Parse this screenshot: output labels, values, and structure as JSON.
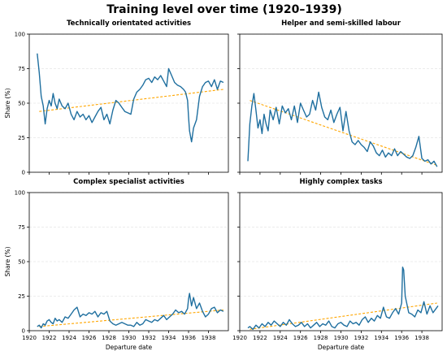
{
  "title": "Training level over time (1920–1939)",
  "x_axis": {
    "label": "Departure date",
    "min": 1920,
    "max": 1940,
    "ticks": [
      1920,
      1922,
      1924,
      1926,
      1928,
      1930,
      1932,
      1934,
      1936,
      1938
    ]
  },
  "y_axis": {
    "label": "Share (%)",
    "min": 0,
    "max": 100,
    "ticks": [
      0,
      25,
      50,
      75,
      100
    ]
  },
  "colors": {
    "series": "#1f6f9f",
    "trend": "#ffa600",
    "grid": "#e6e6e6",
    "spine": "#000000"
  },
  "chart_data": [
    {
      "type": "line",
      "title": "Technically orientated activities",
      "xlim": [
        1920,
        1940
      ],
      "ylim": [
        0,
        100
      ],
      "grid": "horizontal dashed",
      "series": [
        {
          "x": [
            1920.8,
            1921.0,
            1921.2,
            1921.4,
            1921.6,
            1921.8,
            1922.0,
            1922.2,
            1922.4,
            1922.6,
            1922.8,
            1923.0,
            1923.3,
            1923.6,
            1923.9,
            1924.2,
            1924.5,
            1924.8,
            1925.1,
            1925.4,
            1925.7,
            1926.0,
            1926.3,
            1926.6,
            1926.9,
            1927.2,
            1927.5,
            1927.8,
            1928.1,
            1928.4,
            1928.7,
            1929.0,
            1929.3,
            1929.6,
            1929.9,
            1930.2,
            1930.5,
            1930.8,
            1931.1,
            1931.4,
            1931.7,
            1932.0,
            1932.3,
            1932.6,
            1932.9,
            1933.2,
            1933.5,
            1933.8,
            1934.0,
            1934.3,
            1934.6,
            1934.9,
            1935.2,
            1935.5,
            1935.7,
            1935.9,
            1936.0,
            1936.1,
            1936.3,
            1936.5,
            1936.8,
            1937.1,
            1937.4,
            1937.7,
            1938.0,
            1938.3,
            1938.6,
            1938.9,
            1939.2,
            1939.5
          ],
          "y": [
            86,
            72,
            55,
            48,
            35,
            46,
            52,
            48,
            57,
            50,
            46,
            53,
            48,
            46,
            50,
            42,
            38,
            44,
            40,
            42,
            38,
            41,
            36,
            40,
            44,
            47,
            38,
            42,
            35,
            45,
            52,
            50,
            47,
            44,
            43,
            42,
            53,
            58,
            60,
            63,
            67,
            68,
            65,
            69,
            67,
            70,
            66,
            62,
            75,
            70,
            65,
            63,
            62,
            60,
            58,
            52,
            40,
            30,
            22,
            32,
            38,
            55,
            62,
            65,
            66,
            62,
            67,
            60,
            66,
            65
          ]
        }
      ],
      "trend": {
        "x": [
          1921,
          1939.5
        ],
        "y": [
          44,
          60
        ]
      }
    },
    {
      "type": "line",
      "title": "Helper and semi-skilled labour",
      "xlim": [
        1920,
        1940
      ],
      "ylim": [
        0,
        100
      ],
      "grid": "horizontal dashed",
      "series": [
        {
          "x": [
            1920.8,
            1921.0,
            1921.2,
            1921.4,
            1921.6,
            1921.8,
            1922.0,
            1922.2,
            1922.4,
            1922.6,
            1922.8,
            1923.0,
            1923.3,
            1923.6,
            1923.9,
            1924.2,
            1924.5,
            1924.8,
            1925.1,
            1925.4,
            1925.7,
            1926.0,
            1926.3,
            1926.6,
            1926.9,
            1927.2,
            1927.5,
            1927.8,
            1928.1,
            1928.4,
            1928.7,
            1929.0,
            1929.3,
            1929.6,
            1929.9,
            1930.2,
            1930.5,
            1930.8,
            1931.1,
            1931.4,
            1931.7,
            1932.0,
            1932.3,
            1932.6,
            1932.9,
            1933.2,
            1933.5,
            1933.8,
            1934.1,
            1934.4,
            1934.7,
            1935.0,
            1935.3,
            1935.6,
            1935.9,
            1936.2,
            1936.5,
            1936.8,
            1937.1,
            1937.4,
            1937.7,
            1938.0,
            1938.3,
            1938.6,
            1938.9,
            1939.2,
            1939.5
          ],
          "y": [
            8,
            35,
            48,
            57,
            45,
            32,
            38,
            28,
            42,
            35,
            30,
            45,
            38,
            47,
            35,
            48,
            43,
            46,
            38,
            48,
            36,
            50,
            45,
            40,
            42,
            52,
            45,
            58,
            47,
            40,
            38,
            45,
            36,
            42,
            47,
            30,
            44,
            30,
            22,
            20,
            23,
            20,
            18,
            15,
            22,
            19,
            14,
            12,
            16,
            11,
            14,
            12,
            17,
            12,
            15,
            13,
            11,
            10,
            12,
            18,
            26,
            10,
            8,
            9,
            6,
            8,
            4
          ]
        }
      ],
      "trend": {
        "x": [
          1921,
          1939.5
        ],
        "y": [
          52,
          5
        ]
      }
    },
    {
      "type": "line",
      "title": "Complex specialist activities",
      "xlim": [
        1920,
        1940
      ],
      "ylim": [
        0,
        100
      ],
      "grid": "horizontal dashed",
      "series": [
        {
          "x": [
            1920.8,
            1921.0,
            1921.2,
            1921.4,
            1921.6,
            1921.8,
            1922.0,
            1922.2,
            1922.4,
            1922.6,
            1922.8,
            1923.0,
            1923.3,
            1923.6,
            1923.9,
            1924.2,
            1924.5,
            1924.8,
            1925.1,
            1925.4,
            1925.7,
            1926.0,
            1926.3,
            1926.6,
            1926.9,
            1927.2,
            1927.5,
            1927.8,
            1928.1,
            1928.4,
            1928.7,
            1929.0,
            1929.3,
            1929.6,
            1929.9,
            1930.2,
            1930.5,
            1930.8,
            1931.1,
            1931.4,
            1931.7,
            1932.0,
            1932.3,
            1932.6,
            1932.9,
            1933.2,
            1933.5,
            1933.8,
            1934.1,
            1934.4,
            1934.7,
            1935.0,
            1935.3,
            1935.6,
            1935.9,
            1936.0,
            1936.1,
            1936.3,
            1936.5,
            1936.8,
            1937.1,
            1937.4,
            1937.7,
            1938.0,
            1938.3,
            1938.6,
            1938.9,
            1939.2,
            1939.5
          ],
          "y": [
            3,
            4,
            2,
            5,
            4,
            7,
            8,
            6,
            5,
            9,
            7,
            8,
            6,
            10,
            9,
            12,
            15,
            17,
            10,
            12,
            11,
            13,
            12,
            14,
            10,
            13,
            12,
            14,
            7,
            5,
            4,
            5,
            6,
            5,
            4,
            4,
            3,
            6,
            4,
            5,
            8,
            7,
            6,
            8,
            7,
            9,
            11,
            8,
            10,
            12,
            15,
            13,
            14,
            12,
            16,
            23,
            27,
            18,
            24,
            16,
            20,
            14,
            10,
            12,
            16,
            17,
            13,
            15,
            14
          ]
        }
      ],
      "trend": {
        "x": [
          1921,
          1939.5
        ],
        "y": [
          3,
          15
        ]
      }
    },
    {
      "type": "line",
      "title": "Highly complex tasks",
      "xlim": [
        1920,
        1940
      ],
      "ylim": [
        0,
        100
      ],
      "grid": "horizontal dashed",
      "series": [
        {
          "x": [
            1920.8,
            1921.0,
            1921.3,
            1921.6,
            1921.9,
            1922.2,
            1922.5,
            1922.8,
            1923.1,
            1923.4,
            1923.7,
            1924.0,
            1924.3,
            1924.6,
            1924.9,
            1925.2,
            1925.5,
            1925.8,
            1926.1,
            1926.4,
            1926.7,
            1927.0,
            1927.3,
            1927.6,
            1927.9,
            1928.2,
            1928.5,
            1928.8,
            1929.1,
            1929.4,
            1929.7,
            1930.0,
            1930.3,
            1930.6,
            1930.9,
            1931.2,
            1931.5,
            1931.8,
            1932.1,
            1932.4,
            1932.7,
            1933.0,
            1933.3,
            1933.6,
            1933.9,
            1934.2,
            1934.5,
            1934.8,
            1935.1,
            1935.4,
            1935.7,
            1936.0,
            1936.1,
            1936.2,
            1936.35,
            1936.5,
            1936.7,
            1937.0,
            1937.3,
            1937.6,
            1937.9,
            1938.2,
            1938.5,
            1938.8,
            1939.1,
            1939.4,
            1939.6
          ],
          "y": [
            2,
            3,
            1,
            4,
            2,
            5,
            3,
            6,
            4,
            7,
            5,
            3,
            6,
            4,
            8,
            5,
            3,
            4,
            6,
            3,
            5,
            2,
            4,
            6,
            3,
            5,
            4,
            7,
            3,
            2,
            5,
            6,
            4,
            3,
            7,
            5,
            6,
            4,
            8,
            10,
            6,
            9,
            7,
            11,
            9,
            17,
            10,
            9,
            13,
            16,
            12,
            20,
            46,
            44,
            25,
            20,
            13,
            12,
            10,
            15,
            13,
            21,
            12,
            18,
            13,
            16,
            18
          ]
        }
      ],
      "trend": {
        "x": [
          1921,
          1939.5
        ],
        "y": [
          1,
          20
        ]
      }
    }
  ]
}
